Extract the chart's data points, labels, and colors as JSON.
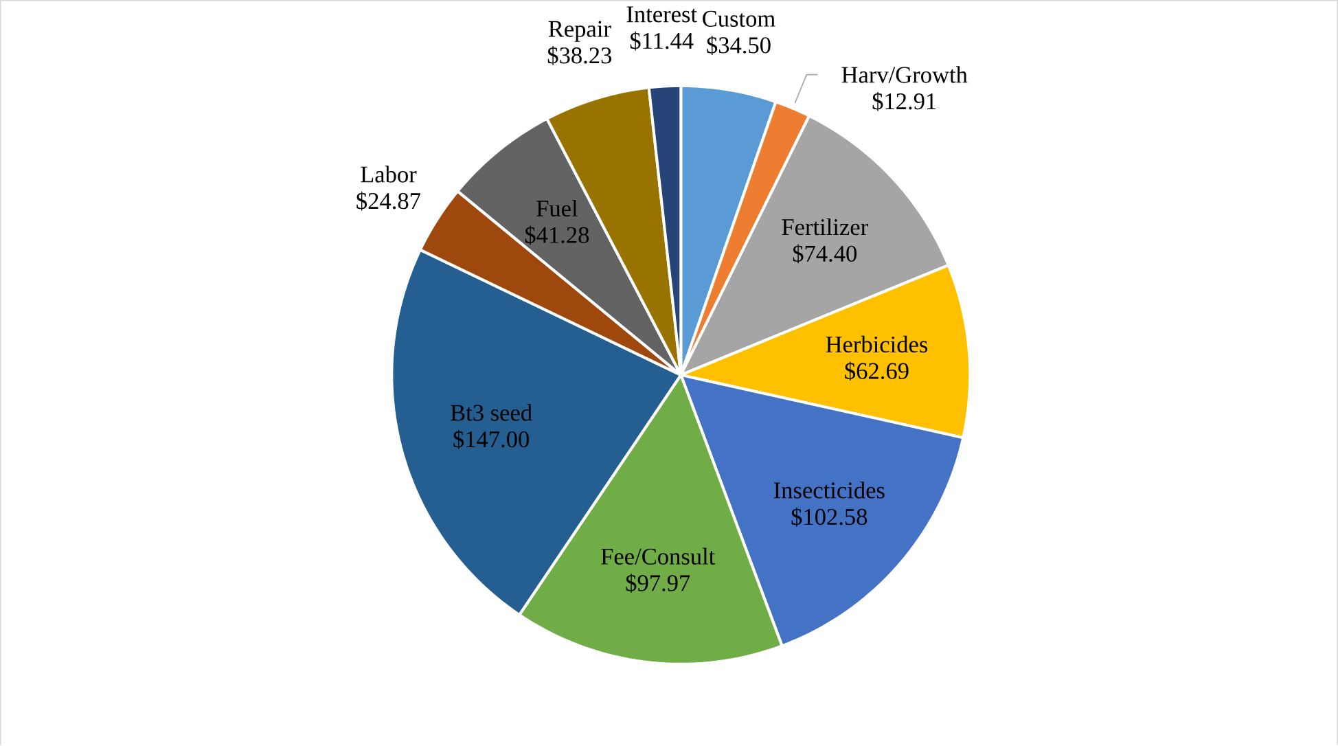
{
  "chart_data": {
    "type": "pie",
    "categories": [
      "Custom",
      "Harv/Growth",
      "Fertilizer",
      "Herbicides",
      "Insecticides",
      "Fee/Consult",
      "Bt3 seed",
      "Labor",
      "Fuel",
      "Repair",
      "Interest"
    ],
    "values": [
      34.5,
      12.91,
      74.4,
      62.69,
      102.58,
      97.97,
      147.0,
      24.87,
      41.28,
      38.23,
      11.44
    ],
    "value_labels": [
      "$34.50",
      "$12.91",
      "$74.40",
      "$62.69",
      "$102.58",
      "$97.97",
      "$147.00",
      "$24.87",
      "$41.28",
      "$38.23",
      "$11.44"
    ],
    "colors": [
      "#5b9bd5",
      "#ed7d31",
      "#a5a5a5",
      "#ffc000",
      "#4472c4",
      "#70ad47",
      "#255e91",
      "#9e480e",
      "#636363",
      "#997300",
      "#264478"
    ]
  }
}
